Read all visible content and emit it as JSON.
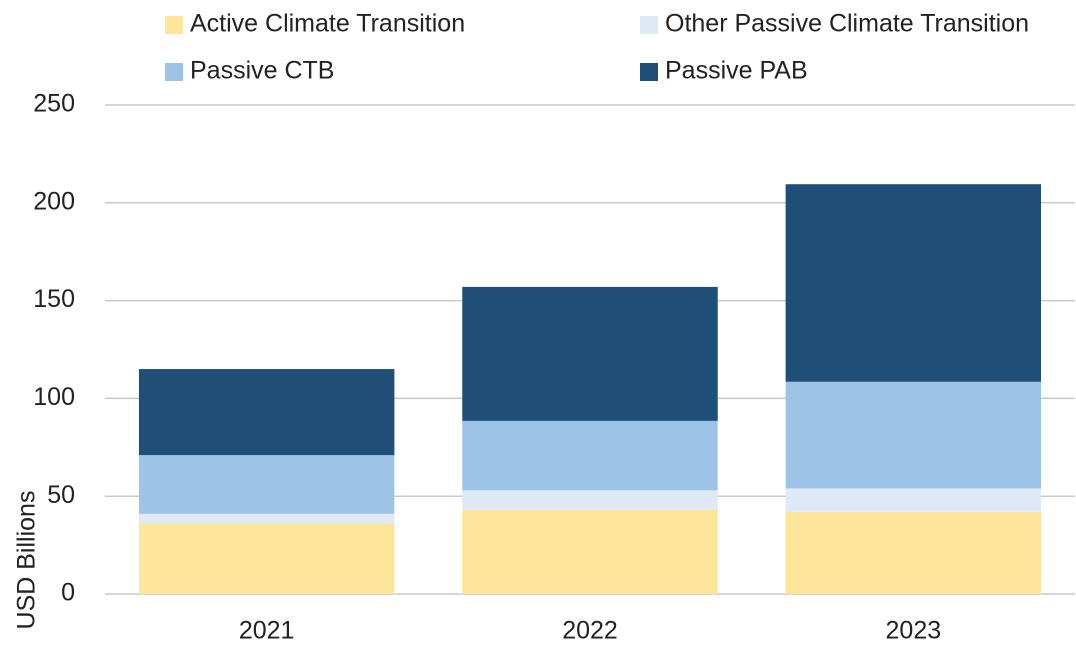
{
  "chart_data": {
    "type": "stacked_bar",
    "categories": [
      "2021",
      "2022",
      "2023"
    ],
    "series": [
      {
        "name": "Active Climate Transition",
        "color": "#fde59a",
        "values": [
          36,
          43,
          42
        ]
      },
      {
        "name": "Other Passive Climate Transition",
        "color": "#dfe9f5",
        "values": [
          5,
          10,
          12
        ]
      },
      {
        "name": "Passive CTB",
        "color": "#9dc3e6",
        "values": [
          30,
          35.5,
          54.5
        ]
      },
      {
        "name": "Passive PAB",
        "color": "#1f4e79",
        "values": [
          44,
          68.5,
          101
        ]
      }
    ],
    "y_label": "USD Billions",
    "ylim": [
      0,
      250
    ],
    "yticks": [
      0,
      50,
      100,
      150,
      200,
      250
    ],
    "grid": true,
    "legend": "top"
  }
}
